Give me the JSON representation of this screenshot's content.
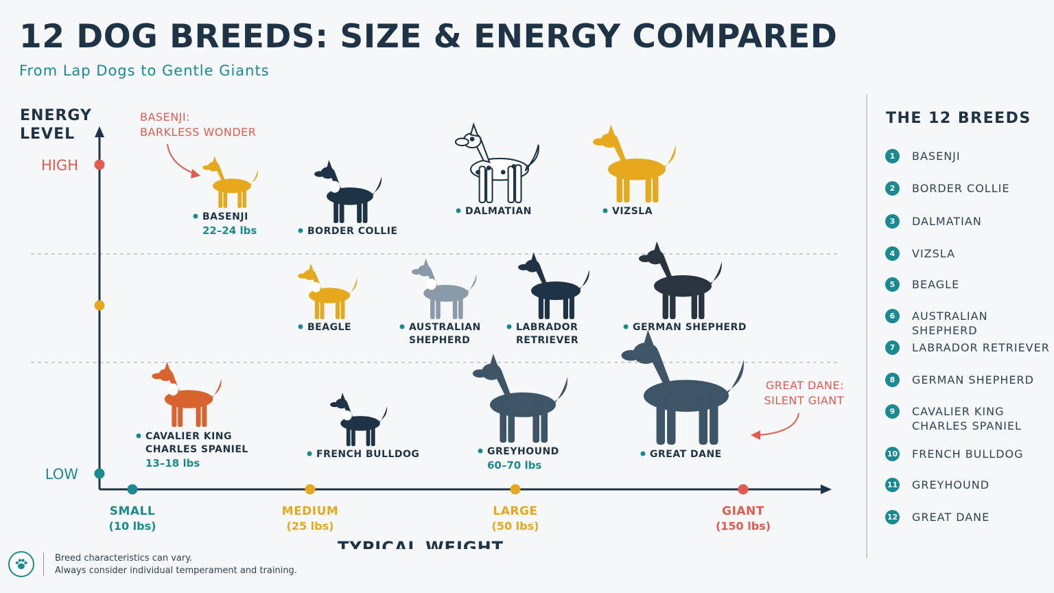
{
  "title": "12 DOG BREEDS: SIZE & ENERGY COMPARED",
  "subtitle": "From Lap Dogs to Gentle Giants",
  "colors": {
    "navy": "#1e3446",
    "teal": "#1a8a92",
    "gold": "#e6a81c",
    "red": "#e35a4e",
    "grid": "#b8c0c5"
  },
  "chart_data": {
    "type": "scatter",
    "title": "12 DOG BREEDS: SIZE & ENERGY COMPARED",
    "xlabel": "TYPICAL WEIGHT",
    "ylabel_lines": [
      "ENERGY",
      "LEVEL"
    ],
    "x_ticks": [
      {
        "name": "SMALL",
        "value": "(10 lbs)",
        "color": "#1a8a92"
      },
      {
        "name": "MEDIUM",
        "value": "(25 lbs)",
        "color": "#e6a81c"
      },
      {
        "name": "LARGE",
        "value": "(50 lbs)",
        "color": "#e6a81c"
      },
      {
        "name": "GIANT",
        "value": "(150 lbs)",
        "color": "#e35a4e"
      }
    ],
    "y_levels": [
      {
        "name": "HIGH",
        "color": "#e35a4e"
      },
      {
        "name": "",
        "color": "#e6a81c"
      },
      {
        "name": "LOW",
        "color": "#1a8a92"
      }
    ],
    "grid": "dashed between energy levels",
    "breeds": [
      {
        "name": "BASENJI",
        "weight": "22–24 lbs",
        "energy": "HIGH",
        "size": "MEDIUM",
        "color": "#e6a81c",
        "icon": "basenji-icon"
      },
      {
        "name": "BORDER COLLIE",
        "weight": "",
        "energy": "HIGH",
        "size": "MEDIUM",
        "color": "#1e3446",
        "icon": "border-collie-icon"
      },
      {
        "name": "DALMATIAN",
        "weight": "",
        "energy": "HIGH",
        "size": "LARGE",
        "color": "#ffffff",
        "icon": "dalmatian-icon"
      },
      {
        "name": "VIZSLA",
        "weight": "",
        "energy": "HIGH",
        "size": "LARGE",
        "color": "#e6a81c",
        "icon": "vizsla-icon"
      },
      {
        "name": "BEAGLE",
        "weight": "",
        "energy": "MEDIUM",
        "size": "MEDIUM",
        "color": "#e6a81c",
        "icon": "beagle-icon"
      },
      {
        "name": "AUSTRALIAN SHEPHERD",
        "weight": "",
        "energy": "MEDIUM",
        "size": "MEDIUM",
        "color": "#8a9aa8",
        "icon": "australian-shepherd-icon"
      },
      {
        "name": "LABRADOR RETRIEVER",
        "weight": "",
        "energy": "MEDIUM",
        "size": "LARGE",
        "color": "#1e3446",
        "icon": "labrador-retriever-icon"
      },
      {
        "name": "GERMAN SHEPHERD",
        "weight": "",
        "energy": "MEDIUM",
        "size": "LARGE",
        "color": "#2a3440",
        "icon": "german-shepherd-icon"
      },
      {
        "name": "CAVALIER KING CHARLES SPANIEL",
        "weight": "13–18 lbs",
        "energy": "LOW",
        "size": "SMALL",
        "color": "#d8632e",
        "icon": "cavalier-icon"
      },
      {
        "name": "FRENCH BULLDOG",
        "weight": "",
        "energy": "LOW",
        "size": "SMALL",
        "color": "#1e3446",
        "icon": "french-bulldog-icon"
      },
      {
        "name": "GREYHOUND",
        "weight": "60–70 lbs",
        "energy": "LOW",
        "size": "LARGE",
        "color": "#3d5566",
        "icon": "greyhound-icon"
      },
      {
        "name": "GREAT DANE",
        "weight": "",
        "energy": "LOW",
        "size": "GIANT",
        "color": "#3d5566",
        "icon": "great-dane-icon"
      }
    ],
    "annotations": [
      {
        "lines": [
          "BASENJI:",
          "BARKLESS WONDER"
        ],
        "target": "BASENJI"
      },
      {
        "lines": [
          "GREAT DANE:",
          "SILENT GIANT"
        ],
        "target": "GREAT DANE"
      }
    ]
  },
  "legend": {
    "title": "THE 12 BREEDS",
    "items": [
      {
        "num": "1",
        "label": "BASENJI"
      },
      {
        "num": "2",
        "label": "BORDER COLLIE"
      },
      {
        "num": "3",
        "label": "DALMATIAN"
      },
      {
        "num": "4",
        "label": "VIZSLA"
      },
      {
        "num": "5",
        "label": "BEAGLE"
      },
      {
        "num": "6",
        "label": "AUSTRALIAN SHEPHERD"
      },
      {
        "num": "7",
        "label": "LABRADOR RETRIEVER"
      },
      {
        "num": "8",
        "label": "GERMAN SHEPHERD"
      },
      {
        "num": "9",
        "label": "CAVALIER KING\nCHARLES SPANIEL"
      },
      {
        "num": "10",
        "label": "FRENCH BULLDOG"
      },
      {
        "num": "11",
        "label": "GREYHOUND"
      },
      {
        "num": "12",
        "label": "GREAT DANE"
      }
    ]
  },
  "footer": {
    "icon": "paw-icon",
    "line1": "Breed characteristics can vary.",
    "line2": "Always consider individual temperament and training."
  }
}
